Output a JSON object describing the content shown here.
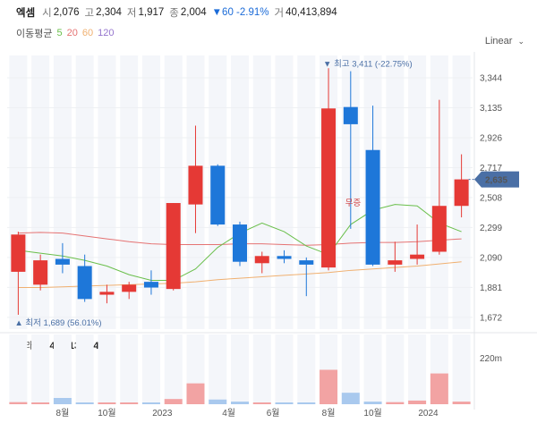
{
  "header": {
    "name": "엑셈",
    "open_label": "시",
    "open": "2,076",
    "high_label": "고",
    "high": "2,304",
    "low_label": "저",
    "low": "1,917",
    "close_label": "종",
    "close": "2,004",
    "change": "▼60 -2.91%",
    "volume_label": "거",
    "volume": "40,413,894"
  },
  "ma_legend": {
    "label": "이동평균",
    "p5": "5",
    "p20": "20",
    "p60": "60",
    "p120": "120"
  },
  "scale_selector": {
    "label": "Linear"
  },
  "volume_header": {
    "label": "거래량",
    "value": "40,413,894"
  },
  "colors": {
    "up": "#e53935",
    "down": "#1e77d9",
    "ma5": "#6abf4b",
    "ma20": "#e57373",
    "ma60": "#f0b070",
    "ma120": "#9575cd",
    "current": "#4a6fa5",
    "vol_up": "#f2a3a3",
    "vol_down": "#a9c9ee"
  },
  "chart_data": {
    "type": "candlestick",
    "price_ticks": [
      "3,344",
      "3,135",
      "2,926",
      "2,717",
      "2,508",
      "2,299",
      "2,090",
      "1,881",
      "1,672"
    ],
    "ylim": [
      1590,
      3500
    ],
    "x_tick_labels": [
      "8월",
      "10월",
      "2023",
      "4월",
      "6월",
      "8월",
      "10월",
      "2024"
    ],
    "candles": [
      {
        "o": 1990,
        "h": 2270,
        "l": 1690,
        "c": 2250
      },
      {
        "o": 1900,
        "h": 2110,
        "l": 1860,
        "c": 2070
      },
      {
        "o": 2080,
        "h": 2190,
        "l": 1980,
        "c": 2040
      },
      {
        "o": 2030,
        "h": 2110,
        "l": 1780,
        "c": 1800
      },
      {
        "o": 1830,
        "h": 1900,
        "l": 1770,
        "c": 1850
      },
      {
        "o": 1850,
        "h": 1920,
        "l": 1800,
        "c": 1900
      },
      {
        "o": 1920,
        "h": 2000,
        "l": 1830,
        "c": 1880
      },
      {
        "o": 1870,
        "h": 2470,
        "l": 1860,
        "c": 2470
      },
      {
        "o": 2460,
        "h": 3010,
        "l": 2260,
        "c": 2730
      },
      {
        "o": 2730,
        "h": 2740,
        "l": 2310,
        "c": 2320
      },
      {
        "o": 2320,
        "h": 2340,
        "l": 2030,
        "c": 2060
      },
      {
        "o": 2050,
        "h": 2130,
        "l": 1980,
        "c": 2100
      },
      {
        "o": 2100,
        "h": 2140,
        "l": 2050,
        "c": 2080
      },
      {
        "o": 2070,
        "h": 2090,
        "l": 1820,
        "c": 2040
      },
      {
        "o": 2020,
        "h": 3411,
        "l": 2000,
        "c": 3130
      },
      {
        "o": 3140,
        "h": 3390,
        "l": 2290,
        "c": 3020
      },
      {
        "o": 2840,
        "h": 3150,
        "l": 2030,
        "c": 2040
      },
      {
        "o": 2040,
        "h": 2200,
        "l": 1990,
        "c": 2070
      },
      {
        "o": 2080,
        "h": 2320,
        "l": 2040,
        "c": 2110
      },
      {
        "o": 2130,
        "h": 3190,
        "l": 2110,
        "c": 2450
      },
      {
        "o": 2450,
        "h": 2810,
        "l": 2370,
        "c": 2635
      }
    ],
    "volumes": [
      4,
      1,
      12,
      2,
      1,
      1,
      2,
      10,
      40,
      9,
      5,
      2,
      3,
      2,
      66,
      22,
      5,
      4,
      7,
      59,
      5
    ],
    "ma5": [
      2140,
      2120,
      2100,
      2070,
      2030,
      1970,
      1930,
      1930,
      2010,
      2160,
      2260,
      2330,
      2270,
      2170,
      2110,
      2320,
      2420,
      2460,
      2450,
      2330,
      2270
    ],
    "ma20": [
      2260,
      2265,
      2260,
      2240,
      2220,
      2200,
      2185,
      2180,
      2180,
      2180,
      2185,
      2185,
      2180,
      2175,
      2180,
      2190,
      2195,
      2195,
      2200,
      2210,
      2220
    ],
    "ma60": [
      1880,
      1880,
      1885,
      1890,
      1895,
      1900,
      1905,
      1910,
      1920,
      1935,
      1945,
      1955,
      1965,
      1975,
      1985,
      2000,
      2010,
      2020,
      2030,
      2045,
      2060
    ],
    "volume_scale_label": "220m",
    "volume_max": 120,
    "high_marker": "최고 3,411 (-22.75%)",
    "low_marker": "최저 1,689 (56.01%)",
    "high_value": 3411,
    "low_value": 1689,
    "current_price": "2,635",
    "current_value": 2635,
    "tag": "무증"
  }
}
